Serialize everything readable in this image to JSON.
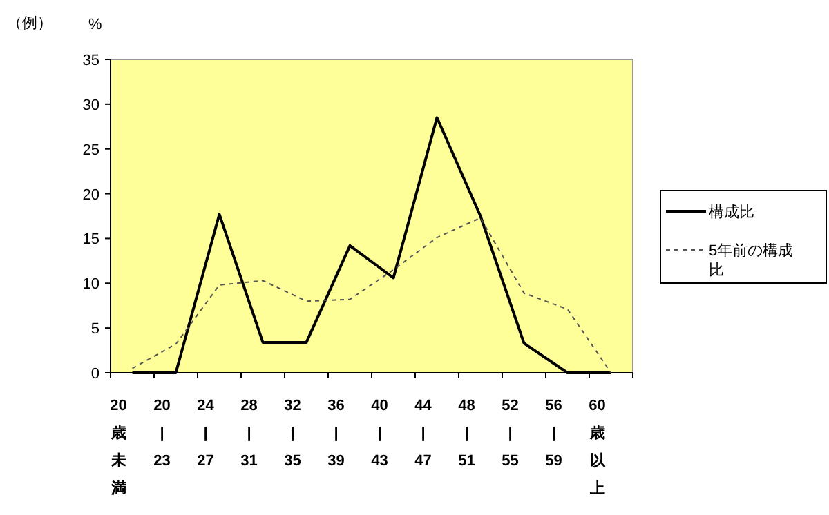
{
  "chart_data": {
    "type": "line",
    "ylabel": "%",
    "annotations": [
      "（例）"
    ],
    "categories": [
      "20歳未満",
      "20|23",
      "24|27",
      "28|31",
      "32|35",
      "36|39",
      "40|43",
      "44|47",
      "48|51",
      "52|55",
      "56|59",
      "60歳以上"
    ],
    "series": [
      {
        "name": "構成比",
        "color": "#000000",
        "line_style": "solid",
        "values": [
          0,
          0,
          17.7,
          3.4,
          3.4,
          14.2,
          10.6,
          28.5,
          17.5,
          3.3,
          0,
          0
        ]
      },
      {
        "name": "5年前の構成比",
        "color": "#555555",
        "line_style": "dashed",
        "values": [
          0.5,
          3.2,
          9.8,
          10.3,
          8.0,
          8.2,
          11.5,
          15.1,
          17.3,
          8.9,
          7.1,
          0
        ]
      }
    ],
    "ylim": [
      0,
      35
    ],
    "yticks": [
      0,
      5,
      10,
      15,
      20,
      25,
      30,
      35
    ],
    "grid": false,
    "legend": "right",
    "marker": "none"
  }
}
